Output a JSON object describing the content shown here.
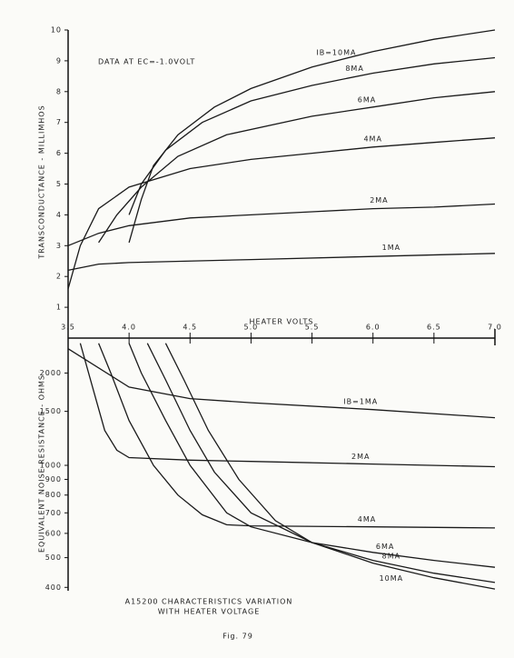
{
  "chart_data": [
    {
      "type": "line",
      "annotation": "DATA AT EC=-1.0VOLT",
      "ylabel": "TRANSCONDUCTANCE - MILLIMHOS",
      "xlabel": "HEATER VOLTS",
      "xlim": [
        3.5,
        7.0
      ],
      "ylim": [
        0,
        10
      ],
      "xticks": [
        3.5,
        {
          "value": 4,
          "label": "4.0"
        },
        4.5,
        {
          "value": 5,
          "label": "5.0"
        },
        5.5,
        {
          "value": 6,
          "label": "6.0"
        },
        6.5,
        {
          "value": 7,
          "label": "7.0"
        }
      ],
      "yticks": [
        1,
        2,
        3,
        4,
        5,
        6,
        7,
        8,
        9,
        10
      ],
      "log_y": false,
      "series": [
        {
          "name": "IB=10MA",
          "color": "#1a1a1a",
          "x": [
            4.0,
            4.1,
            4.2,
            4.4,
            4.7,
            5.0,
            5.5,
            6.0,
            6.5,
            7.0
          ],
          "values": [
            3.1,
            4.5,
            5.6,
            6.6,
            7.5,
            8.1,
            8.8,
            9.3,
            9.7,
            10.0
          ]
        },
        {
          "name": "8MA",
          "color": "#1a1a1a",
          "x": [
            4.0,
            4.1,
            4.3,
            4.6,
            5.0,
            5.5,
            6.0,
            6.5,
            7.0
          ],
          "values": [
            4.0,
            5.0,
            6.1,
            7.0,
            7.7,
            8.2,
            8.6,
            8.9,
            9.1
          ]
        },
        {
          "name": "6MA",
          "color": "#1a1a1a",
          "x": [
            3.75,
            3.9,
            4.1,
            4.4,
            4.8,
            5.5,
            6.0,
            6.5,
            7.0
          ],
          "values": [
            3.1,
            4.0,
            4.9,
            5.9,
            6.6,
            7.2,
            7.5,
            7.8,
            8.0
          ]
        },
        {
          "name": "4MA",
          "color": "#1a1a1a",
          "x": [
            3.5,
            3.6,
            3.75,
            4.0,
            4.5,
            5.0,
            5.5,
            6.0,
            6.5,
            7.0
          ],
          "values": [
            1.6,
            3.0,
            4.2,
            4.9,
            5.5,
            5.8,
            6.0,
            6.2,
            6.35,
            6.5
          ]
        },
        {
          "name": "2MA",
          "color": "#1a1a1a",
          "x": [
            3.5,
            3.75,
            4.0,
            4.5,
            5.0,
            5.5,
            6.0,
            6.5,
            7.0
          ],
          "values": [
            3.0,
            3.4,
            3.65,
            3.9,
            4.0,
            4.1,
            4.2,
            4.25,
            4.35
          ]
        },
        {
          "name": "1MA",
          "color": "#1a1a1a",
          "x": [
            3.5,
            3.75,
            4.0,
            5.0,
            6.0,
            7.0
          ],
          "values": [
            2.2,
            2.4,
            2.45,
            2.55,
            2.65,
            2.75
          ]
        }
      ]
    },
    {
      "type": "line",
      "title": [
        "A15200 CHARACTERISTICS VARIATION",
        "WITH HEATER VOLTAGE"
      ],
      "ylabel": "EQUIVALENT NOISE RESISTANCE - OHMS",
      "xlim": [
        3.5,
        7.0
      ],
      "ylim": [
        390,
        2600
      ],
      "log_y": true,
      "yticks": [
        400,
        500,
        600,
        700,
        800,
        900,
        1000,
        1500,
        2000
      ],
      "series": [
        {
          "name": "IB=1MA",
          "color": "#1a1a1a",
          "x": [
            3.5,
            4.0,
            4.5,
            5.0,
            6.0,
            7.0
          ],
          "values": [
            2400,
            1800,
            1650,
            1600,
            1520,
            1430
          ]
        },
        {
          "name": "2MA",
          "color": "#1a1a1a",
          "x": [
            3.6,
            3.7,
            3.8,
            3.9,
            4.0,
            4.5,
            5.0,
            6.0,
            7.0
          ],
          "values": [
            2500,
            1800,
            1300,
            1120,
            1060,
            1040,
            1030,
            1010,
            990
          ]
        },
        {
          "name": "4MA",
          "color": "#1a1a1a",
          "x": [
            3.75,
            3.85,
            4.0,
            4.2,
            4.4,
            4.6,
            4.8,
            5.0,
            6.0,
            7.0
          ],
          "values": [
            2500,
            2000,
            1400,
            1000,
            800,
            690,
            640,
            635,
            630,
            625
          ]
        },
        {
          "name": "6MA",
          "color": "#1a1a1a",
          "x": [
            4.0,
            4.1,
            4.3,
            4.5,
            4.8,
            5.0,
            5.5,
            6.0,
            6.5,
            7.0
          ],
          "values": [
            2500,
            2000,
            1400,
            1000,
            700,
            630,
            560,
            520,
            490,
            465
          ]
        },
        {
          "name": "8MA",
          "color": "#1a1a1a",
          "x": [
            4.15,
            4.3,
            4.5,
            4.7,
            5.0,
            5.5,
            6.0,
            6.5,
            7.0
          ],
          "values": [
            2500,
            1900,
            1300,
            950,
            700,
            560,
            490,
            445,
            415
          ]
        },
        {
          "name": "10MA",
          "color": "#1a1a1a",
          "x": [
            4.3,
            4.45,
            4.65,
            4.9,
            5.2,
            5.5,
            6.0,
            6.5,
            7.0
          ],
          "values": [
            2500,
            1900,
            1300,
            900,
            660,
            560,
            480,
            430,
            395
          ]
        }
      ]
    }
  ],
  "figure_label": "Fig. 79"
}
